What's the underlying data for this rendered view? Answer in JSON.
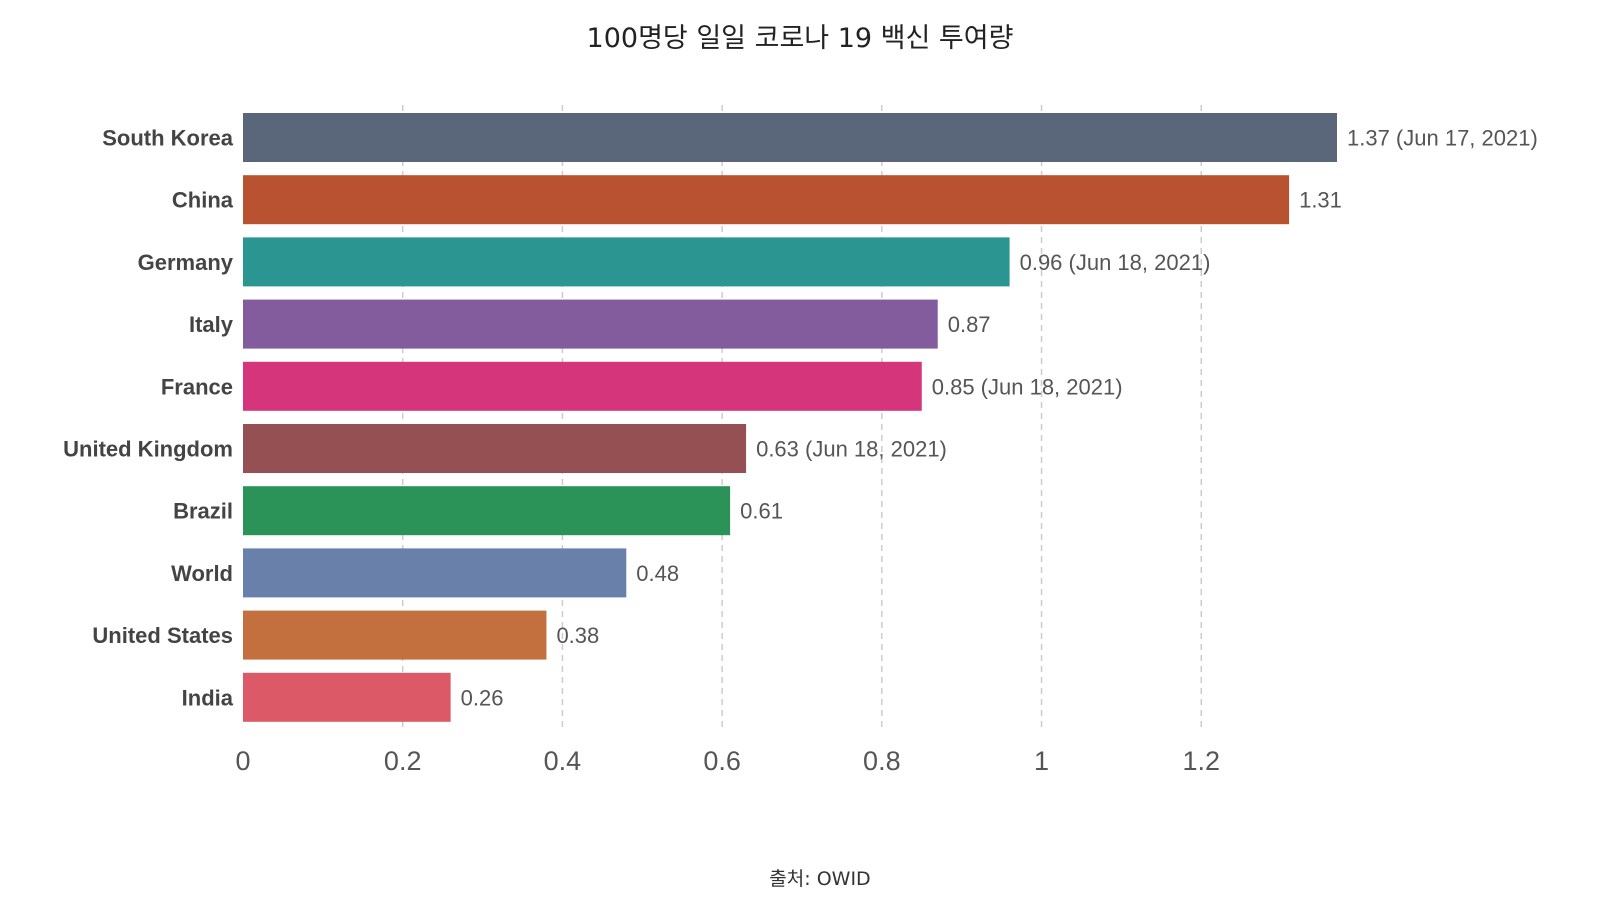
{
  "chart_data": {
    "type": "bar",
    "orientation": "horizontal",
    "title": "100명당 일일 코로나 19 백신 투여량",
    "source": "출처: OWID",
    "xlabel": "",
    "ylabel": "",
    "xlim": [
      0,
      1.37
    ],
    "xticks": [
      0,
      0.2,
      0.4,
      0.6,
      0.8,
      1,
      1.2
    ],
    "xtick_labels": [
      "0",
      "0.2",
      "0.4",
      "0.6",
      "0.8",
      "1",
      "1.2"
    ],
    "grid": "vertical dashed",
    "categories": [
      "South Korea",
      "China",
      "Germany",
      "Italy",
      "France",
      "United Kingdom",
      "Brazil",
      "World",
      "United States",
      "India"
    ],
    "values": [
      1.37,
      1.31,
      0.96,
      0.87,
      0.85,
      0.63,
      0.61,
      0.48,
      0.38,
      0.26
    ],
    "value_labels": [
      "1.37 (Jun 17, 2021)",
      "1.31",
      "0.96 (Jun 18, 2021)",
      "0.87",
      "0.85 (Jun 18, 2021)",
      "0.63 (Jun 18, 2021)",
      "0.61",
      "0.48",
      "0.38",
      "0.26"
    ],
    "colors": [
      "#5a6679",
      "#b95231",
      "#2a9591",
      "#835c9d",
      "#d4357b",
      "#955054",
      "#2c9358",
      "#6880aa",
      "#c4703e",
      "#dc5a67"
    ]
  }
}
